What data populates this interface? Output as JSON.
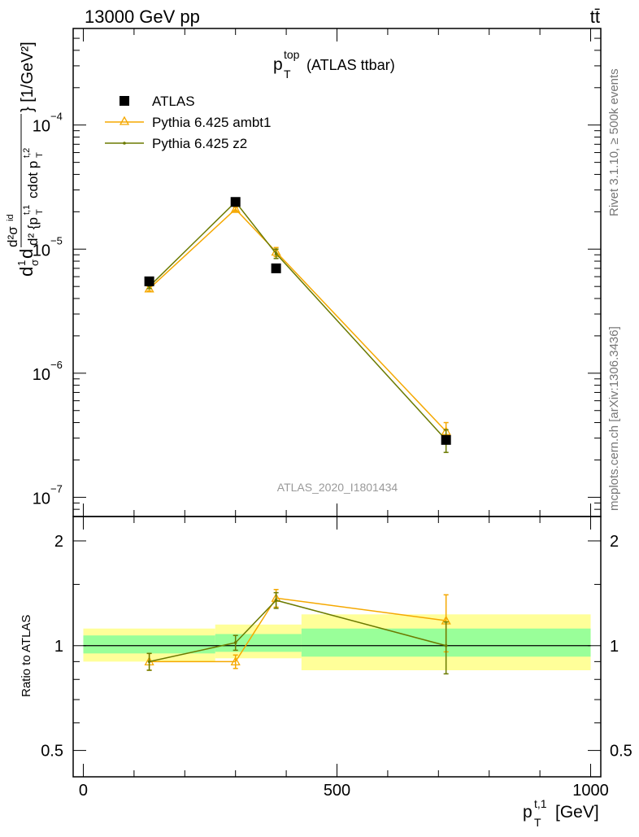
{
  "header": {
    "left": "13000 GeV pp",
    "right": "tt̄"
  },
  "side_text": {
    "rivet": "Rivet 3.1.10, ≥ 500k events",
    "mcplots": "mcplots.cern.ch [arXiv:1306.3436]"
  },
  "chart_data": [
    {
      "type": "scatter",
      "panel": "main",
      "title_main": "p",
      "title_sup": "top",
      "title_sub": "T",
      "title_rest": "(ATLAS ttbar)",
      "watermark": "ATLAS_2020_I1801434",
      "ylabel": "d1dσd d²σid d² {p T t,1 cdot p T t,2} [1/GeV²]",
      "yscale": "log",
      "ylim": [
        7e-08,
        0.0006
      ],
      "xlim": [
        -20,
        1020
      ],
      "y_ticks": [
        {
          "value": 1e-07,
          "base": "10",
          "exp": "−7"
        },
        {
          "value": 1e-06,
          "base": "10",
          "exp": "−6"
        },
        {
          "value": 1e-05,
          "base": "10",
          "exp": "−5"
        },
        {
          "value": 0.0001,
          "base": "10",
          "exp": "−4"
        }
      ],
      "legend_position": "top-left",
      "series": [
        {
          "name": "ATLAS",
          "color": "#000000",
          "marker": "square",
          "x": [
            130,
            300,
            380,
            715
          ],
          "y": [
            5.5e-06,
            2.4e-05,
            7e-06,
            2.9e-07
          ]
        },
        {
          "name": "Pythia 6.425 ambt1",
          "color": "#f5a800",
          "marker": "open-triangle",
          "x": [
            130,
            300,
            380,
            715
          ],
          "y": [
            4.8e-06,
            2.1e-05,
            9.5e-06,
            3.4e-07
          ],
          "yerr": [
            2e-07,
            8e-07,
            8e-07,
            6e-08
          ]
        },
        {
          "name": "Pythia 6.425 z2",
          "color": "#6b7a00",
          "marker": "dot",
          "x": [
            130,
            300,
            380,
            715
          ],
          "y": [
            5e-06,
            2.4e-05,
            9.2e-06,
            2.9e-07
          ],
          "yerr": [
            2e-07,
            8e-07,
            8e-07,
            6e-08
          ]
        }
      ]
    },
    {
      "type": "line",
      "panel": "ratio",
      "ylabel": "Ratio to ATLAS",
      "xlabel_main": "p",
      "xlabel_sup": "t,1",
      "xlabel_sub": "T",
      "xlabel_rest": "[GeV]",
      "yscale": "log",
      "ylim": [
        0.42,
        2.35
      ],
      "xlim": [
        -20,
        1020
      ],
      "x_ticks": [
        "0",
        "500",
        "1000"
      ],
      "x_tick_values": [
        0,
        500,
        1000
      ],
      "y_ticks": [
        "0.5",
        "1",
        "2"
      ],
      "y_tick_values": [
        0.5,
        1,
        2
      ],
      "bands": [
        {
          "x0": 0,
          "x1": 260,
          "yellow": [
            0.9,
            1.12
          ],
          "green": [
            0.95,
            1.07
          ]
        },
        {
          "x0": 260,
          "x1": 430,
          "yellow": [
            0.92,
            1.15
          ],
          "green": [
            0.96,
            1.08
          ]
        },
        {
          "x0": 430,
          "x1": 1000,
          "yellow": [
            0.85,
            1.23
          ],
          "green": [
            0.93,
            1.12
          ]
        }
      ],
      "series": [
        {
          "name": "Pythia 6.425 ambt1",
          "color": "#f5a800",
          "marker": "open-triangle",
          "x": [
            130,
            300,
            380,
            715
          ],
          "y": [
            0.9,
            0.9,
            1.37,
            1.18
          ],
          "yerr": [
            0.05,
            0.04,
            0.08,
            0.22
          ]
        },
        {
          "name": "Pythia 6.425 z2",
          "color": "#6b7a00",
          "marker": "dot",
          "x": [
            130,
            300,
            380,
            715
          ],
          "y": [
            0.9,
            1.02,
            1.35,
            1.0
          ],
          "yerr": [
            0.05,
            0.05,
            0.07,
            0.17
          ]
        }
      ]
    }
  ]
}
